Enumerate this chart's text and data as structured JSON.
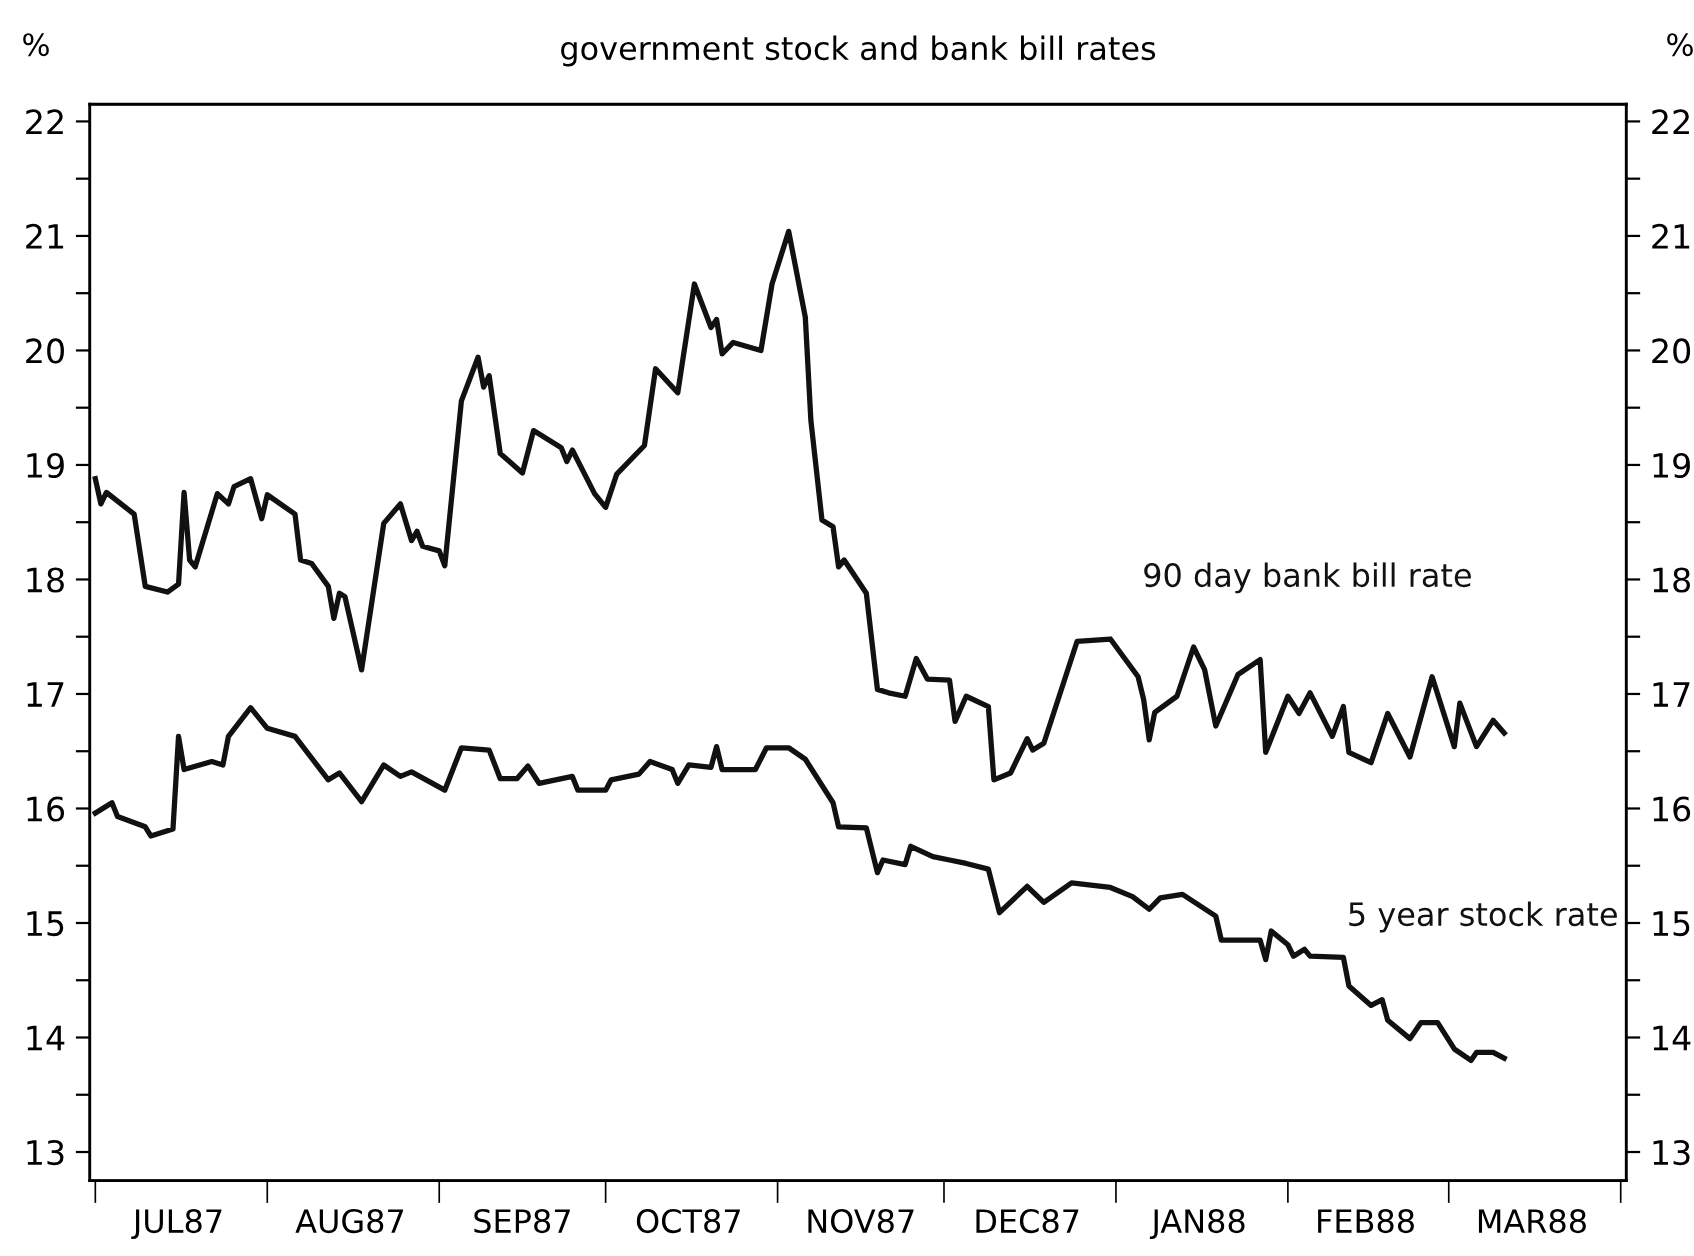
{
  "chart_data": {
    "type": "line",
    "title": "government stock and bank bill rates",
    "ylabel": "%",
    "y2label": "%",
    "xlim": [
      "1987-06-30",
      "1988-04-02"
    ],
    "xticks": [
      {
        "value": "1987-07-01",
        "label": null
      },
      {
        "value": "1987-07-16",
        "label": "JUL87"
      },
      {
        "value": "1987-08-01",
        "label": null
      },
      {
        "value": "1987-08-16",
        "label": "AUG87"
      },
      {
        "value": "1987-09-01",
        "label": null
      },
      {
        "value": "1987-09-16",
        "label": "SEP87"
      },
      {
        "value": "1987-10-01",
        "label": null
      },
      {
        "value": "1987-10-16",
        "label": "OCT87"
      },
      {
        "value": "1987-11-01",
        "label": null
      },
      {
        "value": "1987-11-16",
        "label": "NOV87"
      },
      {
        "value": "1987-12-01",
        "label": null
      },
      {
        "value": "1987-12-16",
        "label": "DEC87"
      },
      {
        "value": "1988-01-01",
        "label": null
      },
      {
        "value": "1988-01-16",
        "label": "JAN88"
      },
      {
        "value": "1988-02-01",
        "label": null
      },
      {
        "value": "1988-02-15",
        "label": "FEB88"
      },
      {
        "value": "1988-03-01",
        "label": null
      },
      {
        "value": "1988-03-16",
        "label": "MAR88"
      },
      {
        "value": "1988-04-01",
        "label": null
      }
    ],
    "ylim": [
      12.75,
      22.15
    ],
    "yticks": [
      13,
      {
        "value": 13.5,
        "label": null
      },
      14,
      {
        "value": 14.5,
        "label": null
      },
      15,
      {
        "value": 15.5,
        "label": null
      },
      16,
      {
        "value": 16.5,
        "label": null
      },
      17,
      {
        "value": 17.5,
        "label": null
      },
      18,
      {
        "value": 18.5,
        "label": null
      },
      19,
      {
        "value": 19.5,
        "label": null
      },
      20,
      {
        "value": 20.5,
        "label": null
      },
      21,
      {
        "value": 21.5,
        "label": null
      },
      22
    ],
    "y2lim": [
      12.75,
      22.15
    ],
    "y2ticks": [
      13,
      {
        "value": 13.5,
        "label": null
      },
      14,
      {
        "value": 14.5,
        "label": null
      },
      15,
      {
        "value": 15.5,
        "label": null
      },
      16,
      {
        "value": 16.5,
        "label": null
      },
      17,
      {
        "value": 17.5,
        "label": null
      },
      18,
      {
        "value": 18.5,
        "label": null
      },
      19,
      {
        "value": 19.5,
        "label": null
      },
      20,
      {
        "value": 20.5,
        "label": null
      },
      21,
      {
        "value": 21.5,
        "label": null
      },
      22
    ],
    "grid": false,
    "legend": false,
    "marker": "none",
    "line_style": "solid",
    "series": [
      {
        "name": "90 day bank bill rate",
        "color": "#111111",
        "x": [
          "1987-07-01",
          "1987-07-02",
          "1987-07-03",
          "1987-07-08",
          "1987-07-10",
          "1987-07-14",
          "1987-07-16",
          "1987-07-17",
          "1987-07-18",
          "1987-07-19",
          "1987-07-23",
          "1987-07-25",
          "1987-07-26",
          "1987-07-29",
          "1987-07-31",
          "1987-08-01",
          "1987-08-06",
          "1987-08-07",
          "1987-08-09",
          "1987-08-12",
          "1987-08-13",
          "1987-08-14",
          "1987-08-15",
          "1987-08-18",
          "1987-08-22",
          "1987-08-25",
          "1987-08-27",
          "1987-08-28",
          "1987-08-29",
          "1987-09-01",
          "1987-09-02",
          "1987-09-05",
          "1987-09-08",
          "1987-09-09",
          "1987-09-10",
          "1987-09-12",
          "1987-09-16",
          "1987-09-18",
          "1987-09-23",
          "1987-09-24",
          "1987-09-25",
          "1987-09-29",
          "1987-10-01",
          "1987-10-03",
          "1987-10-08",
          "1987-10-10",
          "1987-10-14",
          "1987-10-17",
          "1987-10-20",
          "1987-10-21",
          "1987-10-22",
          "1987-10-24",
          "1987-10-29",
          "1987-10-31",
          "1987-11-03",
          "1987-11-06",
          "1987-11-07",
          "1987-11-09",
          "1987-11-11",
          "1987-11-12",
          "1987-11-13",
          "1987-11-17",
          "1987-11-19",
          "1987-11-21",
          "1987-11-24",
          "1987-11-26",
          "1987-11-28",
          "1987-12-02",
          "1987-12-03",
          "1987-12-05",
          "1987-12-09",
          "1987-12-10",
          "1987-12-13",
          "1987-12-16",
          "1987-12-17",
          "1987-12-19",
          "1987-12-25",
          "1987-12-31",
          "1988-01-05",
          "1988-01-06",
          "1988-01-07",
          "1988-01-08",
          "1988-01-12",
          "1988-01-15",
          "1988-01-17",
          "1988-01-19",
          "1988-01-23",
          "1988-01-27",
          "1988-01-28",
          "1988-02-01",
          "1988-02-03",
          "1988-02-05",
          "1988-02-09",
          "1988-02-11",
          "1988-02-12",
          "1988-02-16",
          "1988-02-19",
          "1988-02-23",
          "1988-02-27",
          "1988-03-02",
          "1988-03-03",
          "1988-03-06",
          "1988-03-09",
          "1988-03-11"
        ],
        "values": [
          18.88,
          18.66,
          18.76,
          18.57,
          17.94,
          17.89,
          17.96,
          18.76,
          18.17,
          18.11,
          18.75,
          18.66,
          18.81,
          18.88,
          18.53,
          18.74,
          18.57,
          18.17,
          18.14,
          17.94,
          17.66,
          17.88,
          17.85,
          17.21,
          18.49,
          18.66,
          18.34,
          18.42,
          18.29,
          18.25,
          18.12,
          19.56,
          19.94,
          19.68,
          19.78,
          19.1,
          18.93,
          19.3,
          19.15,
          19.03,
          19.13,
          18.75,
          18.63,
          18.92,
          19.17,
          19.84,
          19.63,
          20.58,
          20.2,
          20.27,
          19.97,
          20.07,
          20.0,
          20.58,
          21.04,
          20.29,
          19.39,
          18.52,
          18.46,
          18.11,
          18.17,
          17.88,
          17.04,
          17.01,
          16.98,
          17.31,
          17.13,
          17.12,
          16.76,
          16.98,
          16.89,
          16.25,
          16.31,
          16.61,
          16.51,
          16.57,
          17.46,
          17.48,
          17.15,
          16.95,
          16.6,
          16.84,
          16.98,
          17.41,
          17.21,
          16.72,
          17.17,
          17.3,
          16.49,
          16.98,
          16.83,
          17.01,
          16.63,
          16.89,
          16.49,
          16.4,
          16.83,
          16.45,
          17.15,
          16.54,
          16.92,
          16.54,
          16.77,
          16.66
        ]
      },
      {
        "name": "5 year stock rate",
        "color": "#111111",
        "x": [
          "1987-07-01",
          "1987-07-04",
          "1987-07-05",
          "1987-07-10",
          "1987-07-11",
          "1987-07-15",
          "1987-07-16",
          "1987-07-17",
          "1987-07-22",
          "1987-07-24",
          "1987-07-25",
          "1987-07-29",
          "1987-08-01",
          "1987-08-06",
          "1987-08-12",
          "1987-08-14",
          "1987-08-18",
          "1987-08-22",
          "1987-08-25",
          "1987-08-27",
          "1987-09-02",
          "1987-09-05",
          "1987-09-10",
          "1987-09-12",
          "1987-09-15",
          "1987-09-17",
          "1987-09-19",
          "1987-09-25",
          "1987-09-26",
          "1987-10-01",
          "1987-10-02",
          "1987-10-07",
          "1987-10-09",
          "1987-10-13",
          "1987-10-14",
          "1987-10-16",
          "1987-10-20",
          "1987-10-21",
          "1987-10-22",
          "1987-10-28",
          "1987-10-30",
          "1987-11-03",
          "1987-11-06",
          "1987-11-11",
          "1987-11-12",
          "1987-11-17",
          "1987-11-19",
          "1987-11-20",
          "1987-11-24",
          "1987-11-25",
          "1987-11-29",
          "1987-12-02",
          "1987-12-05",
          "1987-12-09",
          "1987-12-11",
          "1987-12-16",
          "1987-12-19",
          "1987-12-24",
          "1987-12-31",
          "1988-01-04",
          "1988-01-07",
          "1988-01-09",
          "1988-01-13",
          "1988-01-19",
          "1988-01-20",
          "1988-01-27",
          "1988-01-28",
          "1988-01-29",
          "1988-02-01",
          "1988-02-02",
          "1988-02-04",
          "1988-02-05",
          "1988-02-11",
          "1988-02-12",
          "1988-02-16",
          "1988-02-18",
          "1988-02-19",
          "1988-02-23",
          "1988-02-25",
          "1988-02-28",
          "1988-03-02",
          "1988-03-05",
          "1988-03-06",
          "1988-03-09",
          "1988-03-11"
        ],
        "values": [
          15.96,
          16.05,
          15.93,
          15.84,
          15.76,
          15.82,
          16.63,
          16.34,
          16.41,
          16.38,
          16.63,
          16.88,
          16.7,
          16.63,
          16.25,
          16.31,
          16.06,
          16.38,
          16.28,
          16.32,
          16.16,
          16.53,
          16.51,
          16.26,
          16.26,
          16.37,
          16.22,
          16.28,
          16.16,
          16.16,
          16.25,
          16.3,
          16.41,
          16.34,
          16.22,
          16.38,
          16.36,
          16.54,
          16.34,
          16.34,
          16.53,
          16.53,
          16.43,
          16.05,
          15.84,
          15.83,
          15.44,
          15.55,
          15.51,
          15.67,
          15.58,
          15.55,
          15.52,
          15.47,
          15.09,
          15.32,
          15.18,
          15.35,
          15.31,
          15.23,
          15.12,
          15.22,
          15.25,
          15.06,
          14.85,
          14.85,
          14.68,
          14.93,
          14.81,
          14.71,
          14.77,
          14.71,
          14.7,
          14.45,
          14.28,
          14.33,
          14.15,
          13.99,
          14.13,
          14.13,
          13.9,
          13.8,
          13.87,
          13.87,
          13.82
        ]
      }
    ]
  }
}
